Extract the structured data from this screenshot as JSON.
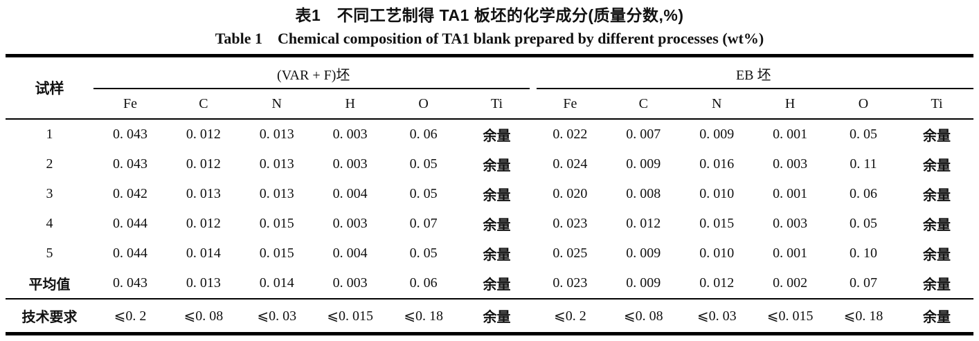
{
  "title": {
    "zh": "表1　不同工艺制得 TA1 板坯的化学成分(质量分数,%)",
    "en": "Table 1　Chemical composition of TA1 blank prepared by different processes (wt%)"
  },
  "table": {
    "sample_header": "试样",
    "groups": [
      {
        "label": "(VAR + F)坯",
        "elements": [
          "Fe",
          "C",
          "N",
          "H",
          "O",
          "Ti"
        ]
      },
      {
        "label": "EB 坯",
        "elements": [
          "Fe",
          "C",
          "N",
          "H",
          "O",
          "Ti"
        ]
      }
    ],
    "rows": [
      {
        "sample": "1",
        "varf": [
          "0. 043",
          "0. 012",
          "0. 013",
          "0. 003",
          "0. 06",
          "余量"
        ],
        "eb": [
          "0. 022",
          "0. 007",
          "0. 009",
          "0. 001",
          "0. 05",
          "余量"
        ]
      },
      {
        "sample": "2",
        "varf": [
          "0. 043",
          "0. 012",
          "0. 013",
          "0. 003",
          "0. 05",
          "余量"
        ],
        "eb": [
          "0. 024",
          "0. 009",
          "0. 016",
          "0. 003",
          "0. 11",
          "余量"
        ]
      },
      {
        "sample": "3",
        "varf": [
          "0. 042",
          "0. 013",
          "0. 013",
          "0. 004",
          "0. 05",
          "余量"
        ],
        "eb": [
          "0. 020",
          "0. 008",
          "0. 010",
          "0. 001",
          "0. 06",
          "余量"
        ]
      },
      {
        "sample": "4",
        "varf": [
          "0. 044",
          "0. 012",
          "0. 015",
          "0. 003",
          "0. 07",
          "余量"
        ],
        "eb": [
          "0. 023",
          "0. 012",
          "0. 015",
          "0. 003",
          "0. 05",
          "余量"
        ]
      },
      {
        "sample": "5",
        "varf": [
          "0. 044",
          "0. 014",
          "0. 015",
          "0. 004",
          "0. 05",
          "余量"
        ],
        "eb": [
          "0. 025",
          "0. 009",
          "0. 010",
          "0. 001",
          "0. 10",
          "余量"
        ]
      },
      {
        "sample": "平均值",
        "varf": [
          "0. 043",
          "0. 013",
          "0. 014",
          "0. 003",
          "0. 06",
          "余量"
        ],
        "eb": [
          "0. 023",
          "0. 009",
          "0. 012",
          "0. 002",
          "0. 07",
          "余量"
        ]
      },
      {
        "sample": "技术要求",
        "varf": [
          "⩽0. 2",
          "⩽0. 08",
          "⩽0. 03",
          "⩽0. 015",
          "⩽0. 18",
          "余量"
        ],
        "eb": [
          "⩽0. 2",
          "⩽0. 08",
          "⩽0. 03",
          "⩽0. 015",
          "⩽0. 18",
          "余量"
        ]
      }
    ]
  }
}
